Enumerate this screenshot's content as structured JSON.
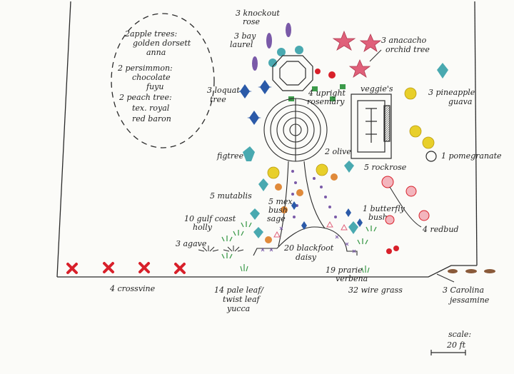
{
  "labels": {
    "apple_1": "2apple trees:",
    "apple_2": "golden dorsett",
    "apple_3": "anna",
    "persimmon_1": "2 persimmon:",
    "persimmon_2": "chocolate",
    "persimmon_3": "fuyu",
    "peach_1": "2 peach tree:",
    "peach_2": "tex. royal",
    "peach_3": "red baron",
    "knockout_1": "3 knockout",
    "knockout_2": "rose",
    "baylaurel_1": "3 bay",
    "baylaurel_2": "laurel",
    "anacacho_1": "3 anacacho",
    "anacacho_2": "orchid tree",
    "loquat_1": "3 loquat",
    "loquat_2": "tree",
    "rosemary_1": "4 upright",
    "rosemary_2": "rosemary",
    "veggies": "veggie's",
    "pineapple_1": "3 pineapple",
    "pineapple_2": "guava",
    "pomegranate": "1 pomegranate",
    "figtree": "figtree",
    "olive": "2 olive",
    "rockrose": "5 rockrose",
    "mutablis": "5 mutablis",
    "mexbush_1": "5 mex.",
    "mexbush_2": "bush",
    "mexbush_3": "sage",
    "butterfly_1": "1 butterfly",
    "butterfly_2": "bush",
    "redbud": "4 redbud",
    "holly_1": "10 gulf coast",
    "holly_2": "holly",
    "agave": "3 agave",
    "daisy_1": "20 blackfoot",
    "daisy_2": "daisy",
    "verbena_1": "19 prarie",
    "verbena_2": "verbena",
    "crossvine": "4 crossvine",
    "yucca_1": "14 pale leaf/",
    "yucca_2": "twist leaf",
    "yucca_3": "yucca",
    "wiregrass": "32 wire grass",
    "jessamine_1": "3 Carolina",
    "jessamine_2": "jessamine",
    "scale_1": "scale:",
    "scale_2": "20 ft"
  },
  "colors": {
    "ink": "#2a2a2a",
    "purple": "#7a5aa8",
    "green": "#3c9a4a",
    "blue": "#2b5aa8",
    "pink": "#e0607a",
    "yellow": "#e8cf2a",
    "red": "#d8202a",
    "teal": "#49a9b0",
    "orange": "#e08a3a",
    "brown": "#8a5a3a"
  }
}
